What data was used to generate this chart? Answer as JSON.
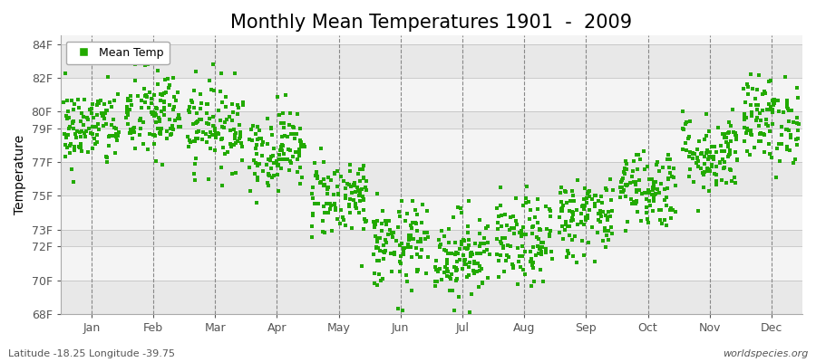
{
  "title": "Monthly Mean Temperatures 1901  -  2009",
  "ylabel": "Temperature",
  "xlabel_bottom": "Latitude -18.25 Longitude -39.75",
  "watermark": "worldspecies.org",
  "legend_label": "Mean Temp",
  "ylim": [
    68,
    84.5
  ],
  "ytick_positions": [
    84,
    82,
    80,
    79,
    77,
    75,
    73,
    72,
    70,
    68
  ],
  "ytick_labels": [
    "84F",
    "82F",
    "80F",
    "79F",
    "77F",
    "75F",
    "73F",
    "72F",
    "70F",
    "68F"
  ],
  "months": [
    "Jan",
    "Feb",
    "Mar",
    "Apr",
    "May",
    "Jun",
    "Jul",
    "Aug",
    "Sep",
    "Oct",
    "Nov",
    "Dec"
  ],
  "mean_temps": [
    79.0,
    79.8,
    79.2,
    77.8,
    75.0,
    72.0,
    71.5,
    72.2,
    73.8,
    75.5,
    77.5,
    79.5
  ],
  "std_temps": [
    1.2,
    1.4,
    1.3,
    1.2,
    1.2,
    1.3,
    1.3,
    1.3,
    1.2,
    1.2,
    1.2,
    1.3
  ],
  "n_points": 109,
  "marker_color": "#22aa00",
  "marker_size": 5,
  "background_color": "#ffffff",
  "band_colors": [
    "#e8e8e8",
    "#f4f4f4"
  ],
  "dashed_line_color": "#888888",
  "title_fontsize": 15,
  "axis_fontsize": 10,
  "tick_fontsize": 9,
  "legend_fontsize": 9,
  "seed": 42
}
